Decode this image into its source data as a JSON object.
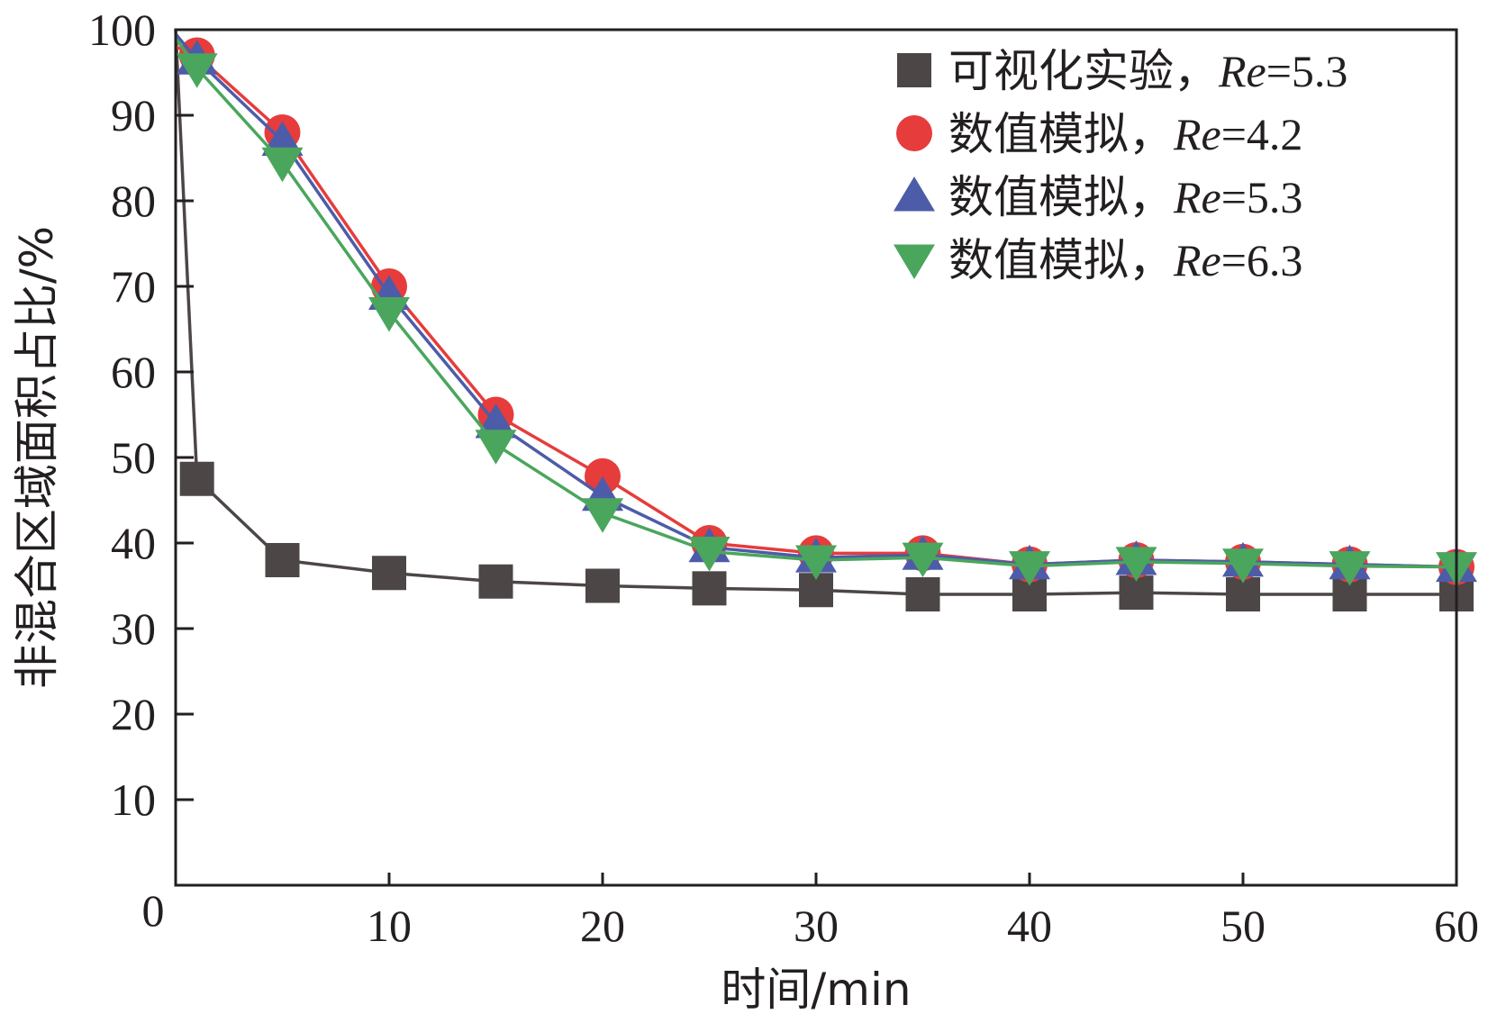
{
  "chart_data": {
    "type": "line",
    "title": "",
    "xlabel": "时间/min",
    "ylabel": "非混合区域面积占比/%",
    "xlim": [
      0,
      60
    ],
    "ylim": [
      0,
      100
    ],
    "x_ticks": [
      10,
      20,
      30,
      40,
      50,
      60
    ],
    "y_ticks": [
      10,
      20,
      30,
      40,
      50,
      60,
      70,
      80,
      90,
      100
    ],
    "origin_label": "0",
    "grid": false,
    "legend_position": "top-right",
    "series": [
      {
        "name": "可视化实验，Re=5.3",
        "legend": {
          "prefix": "可视化实验，",
          "re": "Re",
          "value": "=5.3"
        },
        "marker": "square",
        "marker_color": "#4d4646",
        "line_color": "#4d4646",
        "x": [
          0,
          1,
          5,
          10,
          15,
          20,
          25,
          30,
          35,
          40,
          45,
          50,
          55,
          60
        ],
        "values": [
          100,
          47.5,
          38,
          36.5,
          35.5,
          35,
          34.7,
          34.5,
          34,
          34,
          34.2,
          34,
          34,
          34
        ]
      },
      {
        "name": "数值模拟，Re=4.2",
        "legend": {
          "prefix": "数值模拟，",
          "re": "Re",
          "value": "=4.2"
        },
        "marker": "circle",
        "marker_color": "#e63c3c",
        "line_color": "#e63c3c",
        "x": [
          0,
          1,
          5,
          10,
          15,
          20,
          25,
          30,
          35,
          40,
          45,
          50,
          55,
          60
        ],
        "values": [
          98,
          97,
          88,
          70,
          55,
          47.8,
          40,
          38.8,
          38.8,
          37.5,
          38,
          37.8,
          37.5,
          37.2
        ]
      },
      {
        "name": "数值模拟，Re=5.3",
        "legend": {
          "prefix": "数值模拟，",
          "re": "Re",
          "value": "=5.3"
        },
        "marker": "triangle-up",
        "marker_color": "#4d5ca8",
        "line_color": "#4d5ca8",
        "x": [
          0,
          1,
          5,
          10,
          15,
          20,
          25,
          30,
          35,
          40,
          45,
          50,
          55,
          60
        ],
        "values": [
          99.5,
          96.5,
          87,
          69,
          54,
          45.5,
          39.5,
          38.3,
          38.6,
          37.5,
          38,
          37.8,
          37.5,
          37.2
        ]
      },
      {
        "name": "数值模拟，Re=6.3",
        "legend": {
          "prefix": "数值模拟，",
          "re": "Re",
          "value": "=6.3"
        },
        "marker": "triangle-down",
        "marker_color": "#4aa65c",
        "line_color": "#4aa65c",
        "x": [
          0,
          1,
          5,
          10,
          15,
          20,
          25,
          30,
          35,
          40,
          45,
          50,
          55,
          60
        ],
        "values": [
          99,
          95.5,
          84.5,
          67,
          51.5,
          43.5,
          39,
          38,
          38.3,
          37.3,
          37.8,
          37.6,
          37.3,
          37.2
        ]
      }
    ]
  },
  "colors": {
    "axis": "#231f20",
    "background": "#ffffff"
  }
}
